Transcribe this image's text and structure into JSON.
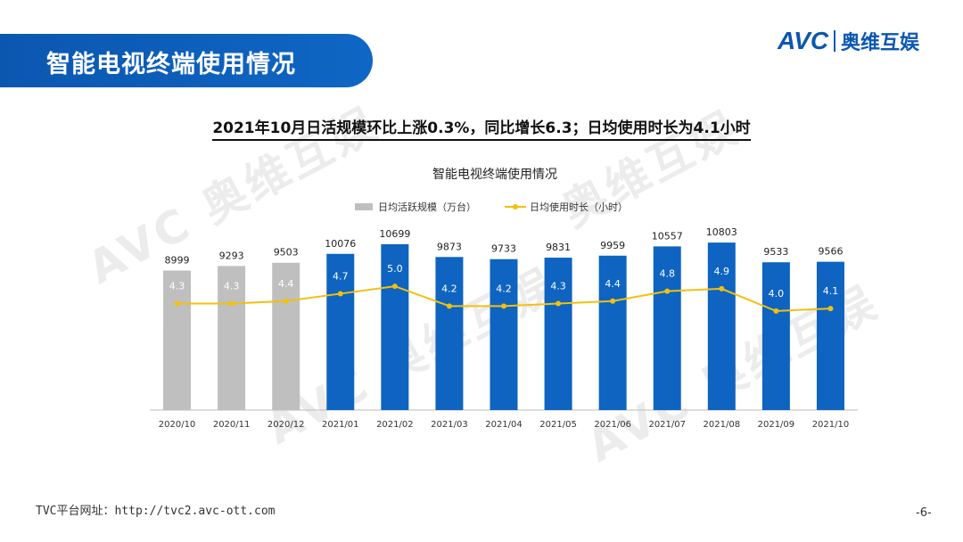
{
  "header": {
    "title": "智能电视终端使用情况"
  },
  "logo": {
    "brand": "AVC",
    "name_cn": "奥维互娱"
  },
  "headline": "2021年10月日活规模环比上涨0.3%，同比增长6.3；日均使用时长为4.1小时",
  "watermarks": {
    "brand": "AVC",
    "name_cn": "奥维互娱"
  },
  "footer": {
    "url_text": "TVC平台网址：http://tvc2.avc-ott.com",
    "page_number": "-6-"
  },
  "colors": {
    "gray_bar": "#bfbfbf",
    "blue_bar": "#0e64c0",
    "line": "#f2c010",
    "header": "#0b57b0"
  },
  "chart_data": {
    "type": "bar",
    "title": "智能电视终端使用情况",
    "categories": [
      "2020/10",
      "2020/11",
      "2020/12",
      "2021/01",
      "2021/02",
      "2021/03",
      "2021/04",
      "2021/05",
      "2021/06",
      "2021/07",
      "2021/08",
      "2021/09",
      "2021/10"
    ],
    "series": [
      {
        "name": "日均活跃规模（万台）",
        "type": "bar",
        "values": [
          8999,
          9293,
          9503,
          10076,
          10699,
          9873,
          9733,
          9831,
          9959,
          10557,
          10803,
          9533,
          9566
        ]
      },
      {
        "name": "日均使用时长（小时）",
        "type": "line",
        "values": [
          4.3,
          4.3,
          4.4,
          4.7,
          5.0,
          4.2,
          4.2,
          4.3,
          4.4,
          4.8,
          4.9,
          4.0,
          4.1
        ]
      }
    ],
    "value_labels": {
      "bars": [
        "8999",
        "9293",
        "9503",
        "10076",
        "10699",
        "9873",
        "9733",
        "9831",
        "9959",
        "10557",
        "10803",
        "9533",
        "9566"
      ],
      "line": [
        "4.3",
        "4.3",
        "4.4",
        "4.7",
        "5.0",
        "4.2",
        "4.2",
        "4.3",
        "4.4",
        "4.8",
        "4.9",
        "4.0",
        "4.1"
      ]
    },
    "gray_bar_count": 3,
    "legend_position": "top-center",
    "bar_ylim": [
      0,
      11500
    ],
    "line_ylim": [
      0,
      7.2
    ],
    "grid": false
  }
}
